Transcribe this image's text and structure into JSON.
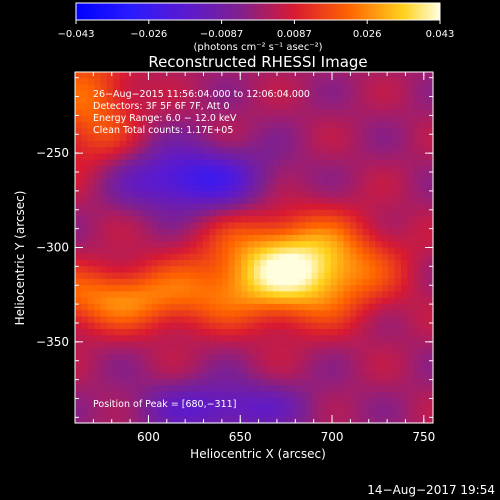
{
  "chart_data": {
    "type": "heatmap",
    "title": "Reconstructed RHESSI Image",
    "xlabel": "Heliocentric X (arcsec)",
    "ylabel": "Heliocentric Y (arcsec)",
    "xlim": [
      560,
      755
    ],
    "ylim": [
      -393,
      -207
    ],
    "xticks": [
      {
        "value": 600,
        "label": "600"
      },
      {
        "value": 650,
        "label": "650"
      },
      {
        "value": 700,
        "label": "700"
      },
      {
        "value": 750,
        "label": "750"
      }
    ],
    "yticks": [
      {
        "value": -250,
        "label": "−250"
      },
      {
        "value": -300,
        "label": "−300"
      },
      {
        "value": -350,
        "label": "−350"
      }
    ],
    "colorbar": {
      "min": -0.043,
      "max": 0.043,
      "ticks": [
        "−0.043",
        "−0.026",
        "−0.0087",
        "0.0087",
        "0.026",
        "0.043"
      ],
      "unit_label": "(photons cm⁻² s⁻¹ asec⁻²)"
    },
    "annotations": [
      "26−Aug−2015 11:56:04.000 to 12:06:04.000",
      "Detectors: 3F 5F 6F 7F, Att 0",
      "Energy Range: 6.0 − 12.0 keV",
      "Clean     Total counts: 1.17E+05"
    ],
    "peak_label": "Position of Peak = [680,−311]",
    "peak_position": [
      680,
      -311
    ],
    "features": [
      {
        "kind": "positive-source",
        "x": 680,
        "y": -311,
        "sx": 32,
        "sy": 18,
        "amplitude": 0.043
      },
      {
        "kind": "positive-ridge",
        "x": 585,
        "y": -327,
        "sx": 40,
        "sy": 12,
        "amplitude": 0.024
      },
      {
        "kind": "positive-corner",
        "x": 568,
        "y": -225,
        "sx": 18,
        "sy": 25,
        "amplitude": 0.02
      },
      {
        "kind": "negative-hole",
        "x": 623,
        "y": -264,
        "sx": 28,
        "sy": 12,
        "amplitude": -0.026
      },
      {
        "kind": "negative-hole",
        "x": 640,
        "y": -385,
        "sx": 30,
        "sy": 10,
        "amplitude": -0.018
      }
    ]
  },
  "footer": {
    "timestamp": "14−Aug−2017 19:54"
  },
  "colors": {
    "background": "#000000",
    "text": "#ffffff"
  }
}
